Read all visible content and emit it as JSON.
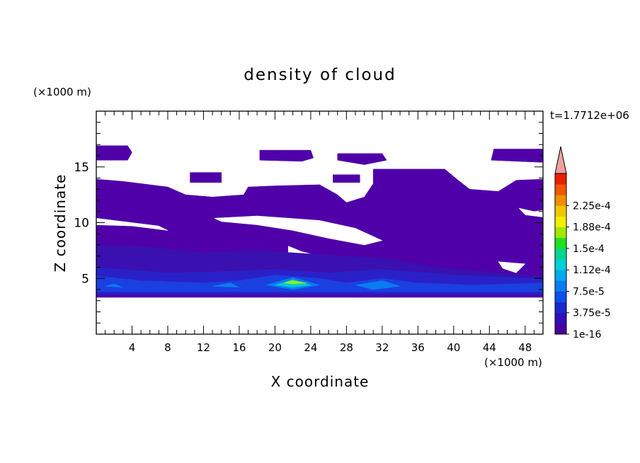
{
  "chart_data": {
    "type": "heatmap",
    "title": "density of cloud",
    "xlabel": "X coordinate",
    "ylabel": "Z coordinate",
    "x_unit": "(×1000 m)",
    "y_unit": "(×1000 m)",
    "time_label": "t=1.7712e+06",
    "xlim": [
      0,
      50
    ],
    "ylim": [
      0,
      20
    ],
    "x_ticks": [
      4,
      8,
      12,
      16,
      20,
      24,
      28,
      32,
      36,
      40,
      44,
      48
    ],
    "y_ticks": [
      5,
      10,
      15
    ],
    "colorbar": {
      "labels": [
        "1e-16",
        "3.75e-5",
        "7.5e-5",
        "1.12e-4",
        "1.5e-4",
        "1.88e-4",
        "2.25e-4"
      ],
      "colors": [
        "#4a00a0",
        "#3010b8",
        "#1a28d0",
        "#0f50e8",
        "#0a7cf0",
        "#00a8f0",
        "#00d0d8",
        "#00d890",
        "#20e020",
        "#a0e800",
        "#f0f000",
        "#f0c800",
        "#f09000",
        "#f05800",
        "#e82000",
        "#f0a0a0"
      ],
      "extend": "max"
    },
    "regions": [
      {
        "level": 1,
        "color": "#5000a8",
        "polygon": [
          [
            0,
            16.9
          ],
          [
            3.5,
            16.9
          ],
          [
            4,
            16.3
          ],
          [
            3.5,
            15.6
          ],
          [
            0,
            15.6
          ]
        ]
      },
      {
        "level": 1,
        "color": "#5000a8",
        "polygon": [
          [
            18.3,
            16.5
          ],
          [
            24,
            16.5
          ],
          [
            24.3,
            15.8
          ],
          [
            23,
            15.5
          ],
          [
            18.3,
            15.6
          ]
        ]
      },
      {
        "level": 1,
        "color": "#5000a8",
        "polygon": [
          [
            27,
            16.2
          ],
          [
            32,
            16.2
          ],
          [
            32.5,
            15.6
          ],
          [
            30,
            15.2
          ],
          [
            27,
            15.6
          ]
        ]
      },
      {
        "level": 1,
        "color": "#5000a8",
        "polygon": [
          [
            44.5,
            16.6
          ],
          [
            50,
            16.6
          ],
          [
            50,
            15.4
          ],
          [
            44.2,
            15.6
          ]
        ]
      },
      {
        "level": 1,
        "color": "#5000a8",
        "polygon": [
          [
            10.5,
            14.5
          ],
          [
            14,
            14.5
          ],
          [
            14,
            13.6
          ],
          [
            10.5,
            13.6
          ]
        ]
      },
      {
        "level": 1,
        "color": "#5000a8",
        "polygon": [
          [
            26.5,
            14.3
          ],
          [
            29.5,
            14.3
          ],
          [
            29.5,
            13.6
          ],
          [
            26.5,
            13.6
          ]
        ]
      },
      {
        "level": 1,
        "color": "#5000a8",
        "polygon": [
          [
            31,
            14.8
          ],
          [
            39,
            14.8
          ],
          [
            40.5,
            13.8
          ],
          [
            41.8,
            13.0
          ],
          [
            45,
            12.8
          ],
          [
            47,
            13.8
          ],
          [
            50,
            13.9
          ],
          [
            50,
            3.3
          ],
          [
            0,
            3.3
          ],
          [
            0,
            13.9
          ],
          [
            3,
            13.7
          ],
          [
            8,
            13.2
          ],
          [
            10,
            12.5
          ],
          [
            13,
            12.3
          ],
          [
            16.5,
            12.5
          ],
          [
            17,
            13.2
          ],
          [
            20,
            13.3
          ],
          [
            25,
            13.4
          ],
          [
            27,
            12.5
          ],
          [
            28,
            11.8
          ],
          [
            30,
            12.3
          ],
          [
            31,
            13.5
          ]
        ]
      },
      {
        "level": 0,
        "color": "#ffffff",
        "polygon": [
          [
            0,
            10.4
          ],
          [
            4,
            10.0
          ],
          [
            7,
            9.7
          ],
          [
            8,
            9.3
          ],
          [
            4,
            9.7
          ],
          [
            0,
            9.8
          ]
        ]
      },
      {
        "level": 0,
        "color": "#ffffff",
        "polygon": [
          [
            13.2,
            10.4
          ],
          [
            18,
            10.6
          ],
          [
            25,
            10.2
          ],
          [
            29,
            9.5
          ],
          [
            32,
            8.4
          ],
          [
            30,
            8.0
          ],
          [
            26,
            8.6
          ],
          [
            22,
            9.3
          ],
          [
            18,
            9.8
          ],
          [
            14,
            10.1
          ]
        ]
      },
      {
        "level": 0,
        "color": "#ffffff",
        "polygon": [
          [
            21.5,
            7.9
          ],
          [
            23,
            7.4
          ],
          [
            25,
            7.0
          ],
          [
            25.3,
            6.7
          ],
          [
            23,
            6.9
          ],
          [
            21.5,
            7.3
          ]
        ]
      },
      {
        "level": 0,
        "color": "#ffffff",
        "polygon": [
          [
            47.3,
            11.3
          ],
          [
            49,
            11.0
          ],
          [
            50,
            11.1
          ],
          [
            50,
            10.5
          ],
          [
            48,
            10.7
          ]
        ]
      },
      {
        "level": 0,
        "color": "#ffffff",
        "polygon": [
          [
            45,
            6.5
          ],
          [
            48,
            6.3
          ],
          [
            47,
            5.5
          ],
          [
            45.5,
            5.9
          ]
        ]
      },
      {
        "level": 0,
        "color": "#ffffff",
        "polygon": [
          [
            44,
            5.0
          ],
          [
            46,
            4.3
          ],
          [
            45,
            4.0
          ],
          [
            43.5,
            4.6
          ]
        ]
      },
      {
        "level": 2,
        "color": "#3a10b0",
        "polygon": [
          [
            0,
            8.0
          ],
          [
            6,
            7.8
          ],
          [
            12,
            7.3
          ],
          [
            18,
            7.5
          ],
          [
            24,
            7.2
          ],
          [
            32,
            6.8
          ],
          [
            38,
            6.0
          ],
          [
            45,
            5.5
          ],
          [
            50,
            5.2
          ],
          [
            50,
            3.5
          ],
          [
            0,
            3.5
          ]
        ]
      },
      {
        "level": 3,
        "color": "#2a20c8",
        "polygon": [
          [
            0,
            6.0
          ],
          [
            8,
            5.5
          ],
          [
            14,
            5.6
          ],
          [
            20,
            5.8
          ],
          [
            26,
            5.5
          ],
          [
            32,
            5.8
          ],
          [
            40,
            5.3
          ],
          [
            50,
            5.0
          ],
          [
            50,
            3.6
          ],
          [
            0,
            3.6
          ]
        ]
      },
      {
        "level": 4,
        "color": "#1a40e0",
        "polygon": [
          [
            0,
            5.2
          ],
          [
            5,
            4.8
          ],
          [
            12,
            4.6
          ],
          [
            16,
            4.8
          ],
          [
            20,
            5.3
          ],
          [
            25,
            5.0
          ],
          [
            28,
            4.6
          ],
          [
            32,
            5.0
          ],
          [
            36,
            4.6
          ],
          [
            42,
            4.4
          ],
          [
            50,
            4.6
          ],
          [
            50,
            3.8
          ],
          [
            0,
            3.8
          ]
        ]
      },
      {
        "level": 5,
        "color": "#0a7cf0",
        "polygon": [
          [
            19,
            4.4
          ],
          [
            22,
            5.1
          ],
          [
            25,
            4.4
          ],
          [
            22,
            4.0
          ]
        ]
      },
      {
        "level": 5,
        "color": "#0a7cf0",
        "polygon": [
          [
            29,
            4.4
          ],
          [
            32,
            4.8
          ],
          [
            34,
            4.3
          ],
          [
            31,
            4.0
          ]
        ]
      },
      {
        "level": 5,
        "color": "#0a7cf0",
        "polygon": [
          [
            13,
            4.3
          ],
          [
            15,
            4.6
          ],
          [
            16,
            4.2
          ]
        ]
      },
      {
        "level": 5,
        "color": "#0a7cf0",
        "polygon": [
          [
            1,
            4.3
          ],
          [
            2,
            4.5
          ],
          [
            3,
            4.2
          ]
        ]
      },
      {
        "level": 6,
        "color": "#00c8d8",
        "polygon": [
          [
            20,
            4.4
          ],
          [
            22,
            4.9
          ],
          [
            24,
            4.4
          ],
          [
            22,
            4.2
          ]
        ]
      },
      {
        "level": 7,
        "color": "#90f020",
        "polygon": [
          [
            21,
            4.6
          ],
          [
            22,
            4.8
          ],
          [
            23.5,
            4.6
          ],
          [
            22,
            4.5
          ]
        ]
      }
    ]
  }
}
